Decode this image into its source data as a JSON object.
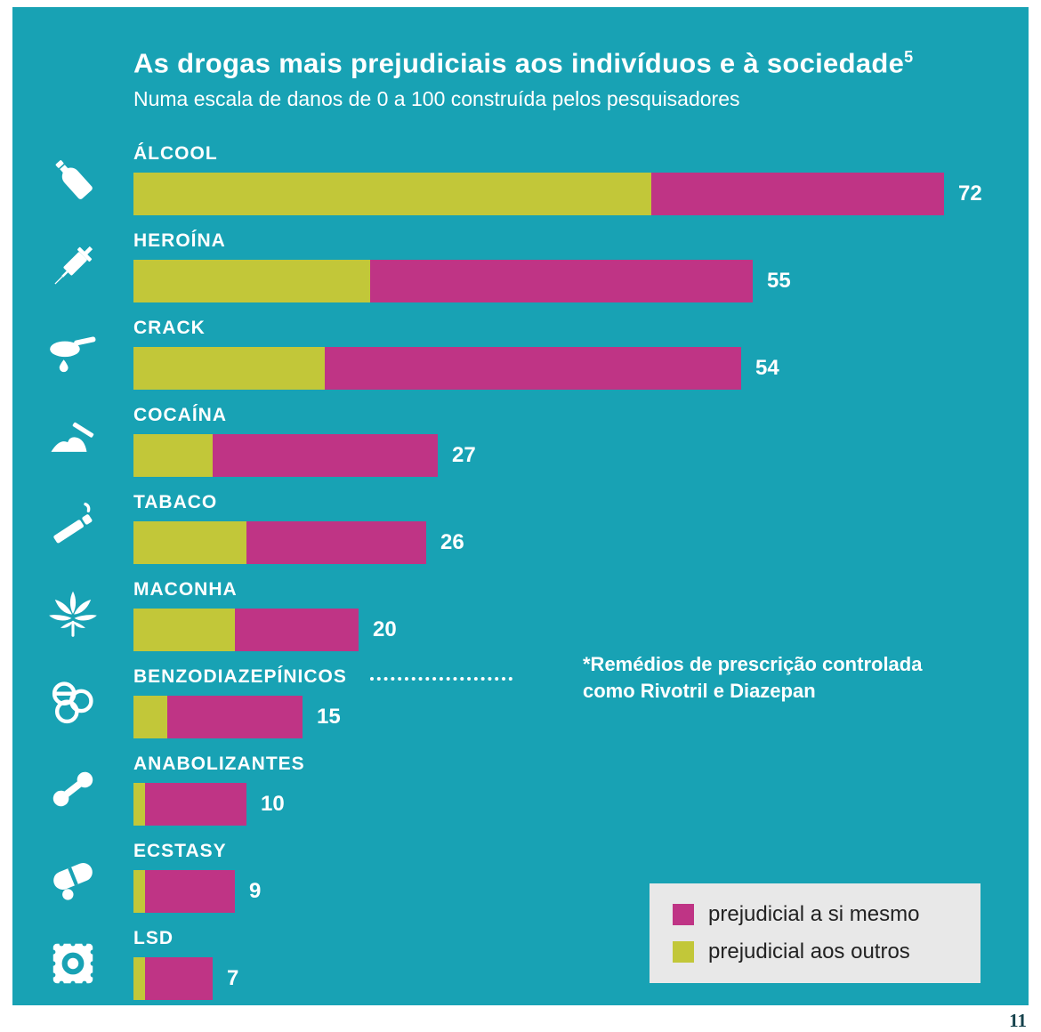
{
  "page": {
    "number": "11"
  },
  "colors": {
    "background": "#18a2b4",
    "harm_self": "#bf3485",
    "harm_others": "#c2c739",
    "legend_background": "#e8e8e8",
    "text": "#ffffff"
  },
  "chart_data": {
    "type": "bar",
    "orientation": "horizontal",
    "title": "As drogas mais prejudiciais aos indivíduos e à sociedade",
    "title_sup": "5",
    "subtitle": "Numa escala de danos de 0 a 100 construída pelos pesquisadores",
    "scale": [
      0,
      100
    ],
    "grid": false,
    "legend_position": "bottom-right",
    "legend": [
      {
        "label": "prejudicial a si mesmo",
        "color": "#bf3485"
      },
      {
        "label": "prejudicial aos outros",
        "color": "#c2c739"
      }
    ],
    "annotation": {
      "attached_to": "BENZODIAZEPÍNICOS",
      "line1": "*Remédios de prescrição controlada",
      "line2": [
        {
          "text": "como ",
          "bold": false
        },
        {
          "text": "Rivotril",
          "bold": true
        },
        {
          "text": " e ",
          "bold": false
        },
        {
          "text": "Diazepan",
          "bold": true
        }
      ]
    },
    "categories": [
      "ÁLCOOL",
      "HEROÍNA",
      "CRACK",
      "COCAÍNA",
      "TABACO",
      "MACONHA",
      "BENZODIAZEPÍNICOS",
      "ANABOLIZANTES",
      "ECSTASY",
      "LSD"
    ],
    "series": [
      {
        "name": "prejudicial aos outros",
        "color": "#c2c739",
        "values": [
          46,
          21,
          17,
          7,
          10,
          9,
          3,
          1,
          1,
          1
        ]
      },
      {
        "name": "prejudicial a si mesmo",
        "color": "#bf3485",
        "values": [
          26,
          34,
          37,
          20,
          16,
          11,
          12,
          9,
          8,
          6
        ]
      }
    ],
    "totals": [
      72,
      55,
      54,
      27,
      26,
      20,
      15,
      10,
      9,
      7
    ],
    "bars": [
      {
        "label": "ÁLCOOL",
        "icon": "bottle",
        "others": 46,
        "total": 72
      },
      {
        "label": "HEROÍNA",
        "icon": "syringe",
        "others": 21,
        "total": 55
      },
      {
        "label": "CRACK",
        "icon": "pipe",
        "others": 17,
        "total": 54
      },
      {
        "label": "COCAÍNA",
        "icon": "powder",
        "others": 7,
        "total": 27
      },
      {
        "label": "TABACO",
        "icon": "cigarette",
        "others": 10,
        "total": 26
      },
      {
        "label": "MACONHA",
        "icon": "leaf",
        "others": 9,
        "total": 20
      },
      {
        "label": "BENZODIAZEPÍNICOS",
        "icon": "pills",
        "others": 3,
        "total": 15,
        "annotation": true
      },
      {
        "label": "ANABOLIZANTES",
        "icon": "dumbbell",
        "others": 1,
        "total": 10
      },
      {
        "label": "ECSTASY",
        "icon": "capsule",
        "others": 1,
        "total": 9
      },
      {
        "label": "LSD",
        "icon": "stamp",
        "others": 1,
        "total": 7
      }
    ]
  }
}
